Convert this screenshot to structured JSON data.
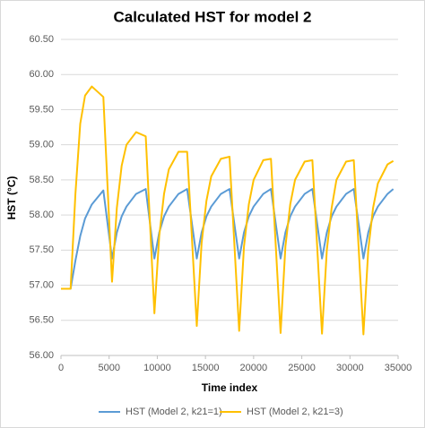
{
  "chart_data": {
    "type": "line",
    "title": "Calculated HST for model 2",
    "x_label": "Time index",
    "y_label": "HST (°C)",
    "xlim": [
      0,
      35000
    ],
    "xticks": [
      0,
      5000,
      10000,
      15000,
      20000,
      25000,
      30000,
      35000
    ],
    "ylim": [
      56,
      60.5
    ],
    "yticks": [
      {
        "value": 56,
        "label": "56.00"
      },
      {
        "value": 56.5,
        "label": "56.50"
      },
      {
        "value": 57,
        "label": "57.00"
      },
      {
        "value": 57.5,
        "label": "57.50"
      },
      {
        "value": 58,
        "label": "58.00"
      },
      {
        "value": 58.5,
        "label": "58.50"
      },
      {
        "value": 59,
        "label": "59.00"
      },
      {
        "value": 59.5,
        "label": "59.50"
      },
      {
        "value": 60,
        "label": "60.00"
      },
      {
        "value": 60.5,
        "label": "60.50"
      }
    ],
    "grid": true,
    "legend": "bottom",
    "x": [
      0,
      1000,
      1500,
      2000,
      2500,
      3200,
      4400,
      5300,
      5800,
      6300,
      6800,
      7800,
      8800,
      9700,
      10200,
      10700,
      11200,
      12200,
      13100,
      14100,
      14600,
      15100,
      15600,
      16600,
      17500,
      18500,
      19000,
      19500,
      20000,
      21000,
      21800,
      22800,
      23300,
      23800,
      24300,
      25300,
      26100,
      27100,
      27600,
      28100,
      28600,
      29600,
      30400,
      31400,
      31900,
      32400,
      32900,
      33900,
      34500
    ],
    "series": [
      {
        "name": "HST (Model 2, k21=1)",
        "color": "#5b9bd5",
        "values": [
          56.95,
          56.95,
          57.35,
          57.7,
          57.95,
          58.15,
          58.35,
          57.38,
          57.75,
          57.98,
          58.12,
          58.3,
          58.37,
          57.38,
          57.75,
          57.98,
          58.12,
          58.3,
          58.37,
          57.38,
          57.75,
          57.98,
          58.12,
          58.3,
          58.37,
          57.38,
          57.75,
          57.98,
          58.12,
          58.3,
          58.37,
          57.38,
          57.75,
          57.98,
          58.12,
          58.3,
          58.37,
          57.38,
          57.75,
          57.98,
          58.12,
          58.3,
          58.37,
          57.38,
          57.75,
          57.98,
          58.12,
          58.3,
          58.37
        ]
      },
      {
        "name": "HST (Model 2, k21=3)",
        "color": "#ffc000",
        "values": [
          56.95,
          56.95,
          58.3,
          59.3,
          59.7,
          59.83,
          59.68,
          57.05,
          58.1,
          58.7,
          59.0,
          59.18,
          59.12,
          56.6,
          57.7,
          58.3,
          58.65,
          58.9,
          58.9,
          56.42,
          57.6,
          58.2,
          58.55,
          58.8,
          58.83,
          56.35,
          57.55,
          58.15,
          58.5,
          58.78,
          58.8,
          56.32,
          57.55,
          58.15,
          58.5,
          58.76,
          58.78,
          56.31,
          57.5,
          58.1,
          58.5,
          58.76,
          58.78,
          56.3,
          57.5,
          58.1,
          58.45,
          58.72,
          58.77
        ]
      }
    ]
  }
}
